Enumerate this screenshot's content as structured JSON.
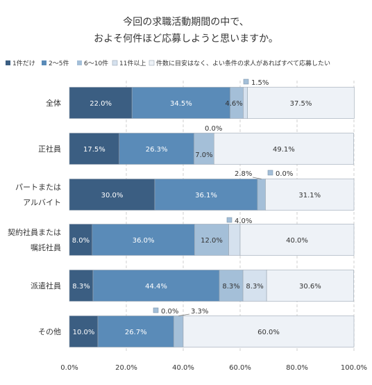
{
  "chart_data": {
    "type": "bar",
    "orientation": "horizontal",
    "stacked": true,
    "title": [
      "今回の求職活動期間の中で、",
      "およそ何件ほど応募しようと思いますか。"
    ],
    "xlim": [
      0,
      100
    ],
    "x_ticks": [
      "0.0%",
      "20.0%",
      "40.0%",
      "60.0%",
      "80.0%",
      "100.0%"
    ],
    "legend_position": "top",
    "categories": [
      [
        "全体"
      ],
      [
        "正社員"
      ],
      [
        "パートまたは",
        "アルバイト"
      ],
      [
        "契約社員または",
        "嘱託社員"
      ],
      [
        "派遣社員"
      ],
      [
        "その他"
      ]
    ],
    "series": [
      {
        "name": "1件だけ",
        "color": "#3b5e82",
        "values": [
          22.0,
          17.5,
          30.0,
          8.0,
          8.3,
          10.0
        ],
        "labels": [
          "22.0%",
          "17.5%",
          "30.0%",
          "8.0%",
          "8.3%",
          "10.0%"
        ]
      },
      {
        "name": "2～5件",
        "color": "#5a8bb8",
        "values": [
          34.5,
          26.3,
          36.1,
          36.0,
          44.4,
          26.7
        ],
        "labels": [
          "34.5%",
          "26.3%",
          "36.1%",
          "36.0%",
          "44.4%",
          "26.7%"
        ]
      },
      {
        "name": "6～10件",
        "color": "#a4bfd8",
        "values": [
          4.6,
          7.0,
          2.8,
          12.0,
          8.3,
          3.3
        ],
        "labels": [
          "4.6%",
          "7.0%",
          "2.8%",
          "12.0%",
          "8.3%",
          "3.3%"
        ]
      },
      {
        "name": "11件以上",
        "color": "#d5e1ee",
        "values": [
          1.5,
          0.0,
          0.0,
          4.0,
          8.3,
          0.0
        ],
        "labels": [
          "1.5%",
          "0.0%",
          "0.0%",
          "4.0%",
          "8.3%",
          "0.0%"
        ]
      },
      {
        "name": "件数に目安はなく、よい条件の求人があればすべて応募したい",
        "color": "#eef2f7",
        "values": [
          37.5,
          49.1,
          31.1,
          40.0,
          30.6,
          60.0
        ],
        "labels": [
          "37.5%",
          "49.1%",
          "31.1%",
          "40.0%",
          "30.6%",
          "60.0%"
        ]
      }
    ]
  }
}
